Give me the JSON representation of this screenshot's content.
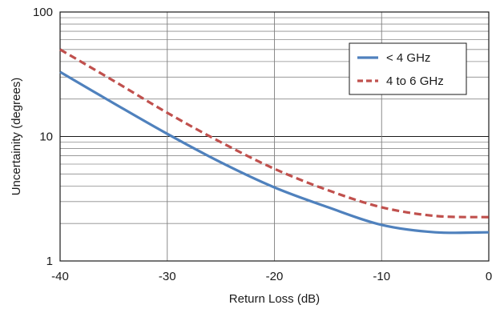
{
  "chart_data": {
    "type": "line",
    "xlabel": "Return Loss (dB)",
    "ylabel": "Uncertainity (degrees)",
    "xlim": [
      -40,
      0
    ],
    "ylim": [
      1,
      100
    ],
    "yscale": "log",
    "grid": true,
    "legend_position": "top-right",
    "x_ticks": [
      {
        "value": -40,
        "label": "-40"
      },
      {
        "value": -30,
        "label": "-30"
      },
      {
        "value": -20,
        "label": "-20"
      },
      {
        "value": -10,
        "label": "-10"
      },
      {
        "value": 0,
        "label": "0"
      }
    ],
    "y_ticks": [
      {
        "value": 1,
        "label": "1"
      },
      {
        "value": 10,
        "label": "10"
      },
      {
        "value": 100,
        "label": "100"
      }
    ],
    "series": [
      {
        "name": "< 4 GHz",
        "color": "#4f81bd",
        "style": "solid",
        "x": [
          -40,
          -35,
          -30,
          -25,
          -20,
          -15,
          -10,
          -5,
          0
        ],
        "y": [
          33,
          18.5,
          10.5,
          6.2,
          3.9,
          2.7,
          1.95,
          1.7,
          1.7
        ]
      },
      {
        "name": "4 to 6 GHz",
        "color": "#c0504d",
        "style": "dashed",
        "x": [
          -40,
          -35,
          -30,
          -25,
          -20,
          -15,
          -10,
          -5,
          0
        ],
        "y": [
          50,
          28,
          15.5,
          9.0,
          5.5,
          3.7,
          2.7,
          2.3,
          2.25
        ]
      }
    ]
  }
}
